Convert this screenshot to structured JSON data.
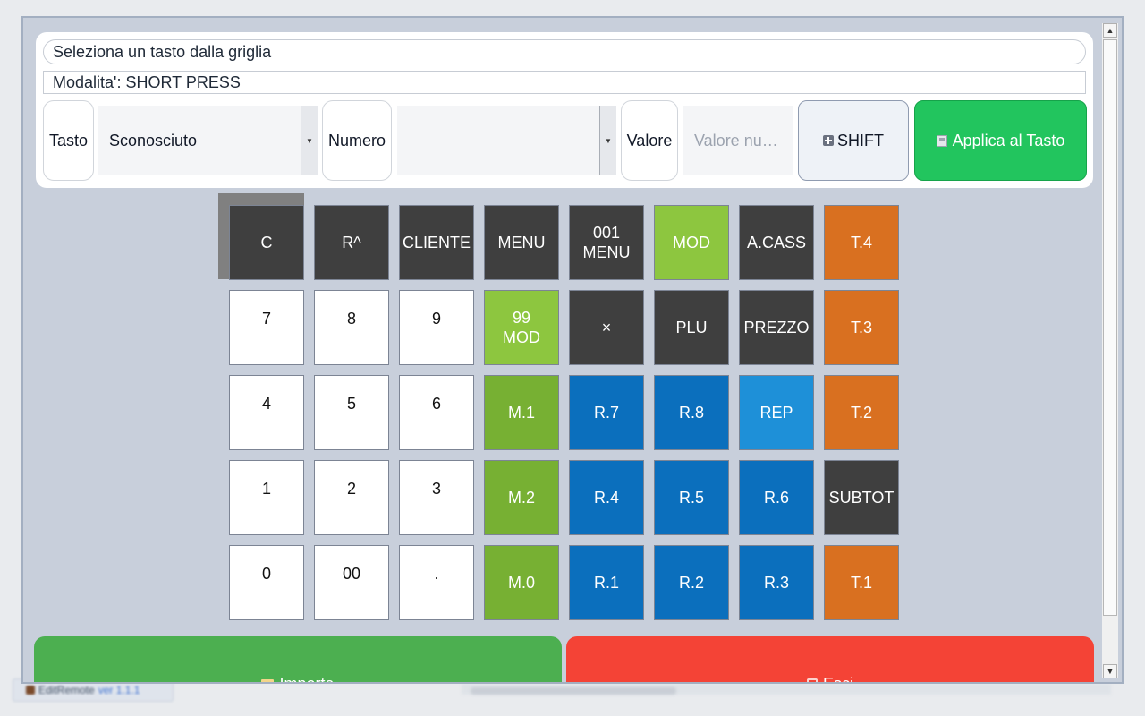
{
  "taskbar": {
    "app_name": "EditRemote",
    "version": "ver 1.1.1"
  },
  "header": {
    "instruction": "Seleziona un tasto dalla griglia",
    "mode": "Modalita': SHORT PRESS"
  },
  "controls": {
    "tasto_label": "Tasto",
    "tasto_value": "Sconosciuto",
    "numero_label": "Numero",
    "numero_value": "",
    "valore_label": "Valore",
    "valore_placeholder": "Valore numerico",
    "shift_label": "SHIFT",
    "apply_label": "Applica al Tasto"
  },
  "keys": [
    {
      "label": "C",
      "style": "dark"
    },
    {
      "label": "R^",
      "style": "dark"
    },
    {
      "label": "CLIENTE",
      "style": "dark"
    },
    {
      "label": "MENU",
      "style": "dark"
    },
    {
      "label": "001\nMENU",
      "style": "dark"
    },
    {
      "label": "MOD",
      "style": "lgreen"
    },
    {
      "label": "A.CASS",
      "style": "dark"
    },
    {
      "label": "T.4",
      "style": "orange"
    },
    {
      "label": "7",
      "style": "white"
    },
    {
      "label": "8",
      "style": "white"
    },
    {
      "label": "9",
      "style": "white"
    },
    {
      "label": "99\nMOD",
      "style": "lgreen"
    },
    {
      "label": "×",
      "style": "dark"
    },
    {
      "label": "PLU",
      "style": "dark"
    },
    {
      "label": "PREZZO",
      "style": "dark"
    },
    {
      "label": "T.3",
      "style": "orange"
    },
    {
      "label": "4",
      "style": "white"
    },
    {
      "label": "5",
      "style": "white"
    },
    {
      "label": "6",
      "style": "white"
    },
    {
      "label": "M.1",
      "style": "green"
    },
    {
      "label": "R.7",
      "style": "blue"
    },
    {
      "label": "R.8",
      "style": "blue"
    },
    {
      "label": "REP",
      "style": "lblue"
    },
    {
      "label": "T.2",
      "style": "orange"
    },
    {
      "label": "1",
      "style": "white"
    },
    {
      "label": "2",
      "style": "white"
    },
    {
      "label": "3",
      "style": "white"
    },
    {
      "label": "M.2",
      "style": "green"
    },
    {
      "label": "R.4",
      "style": "blue"
    },
    {
      "label": "R.5",
      "style": "blue"
    },
    {
      "label": "R.6",
      "style": "blue"
    },
    {
      "label": "SUBTOT",
      "style": "dark"
    },
    {
      "label": "0",
      "style": "white"
    },
    {
      "label": "00",
      "style": "white"
    },
    {
      "label": ".",
      "style": "white"
    },
    {
      "label": "M.0",
      "style": "green"
    },
    {
      "label": "R.1",
      "style": "blue"
    },
    {
      "label": "R.2",
      "style": "blue"
    },
    {
      "label": "R.3",
      "style": "blue"
    },
    {
      "label": "T.1",
      "style": "orange"
    }
  ],
  "footer": {
    "import_label": "Importa",
    "exit_label": "Esci"
  },
  "icons": {
    "shift": "plus-square-icon",
    "apply": "save-icon",
    "import": "folder-icon",
    "exit": "exit-icon"
  }
}
